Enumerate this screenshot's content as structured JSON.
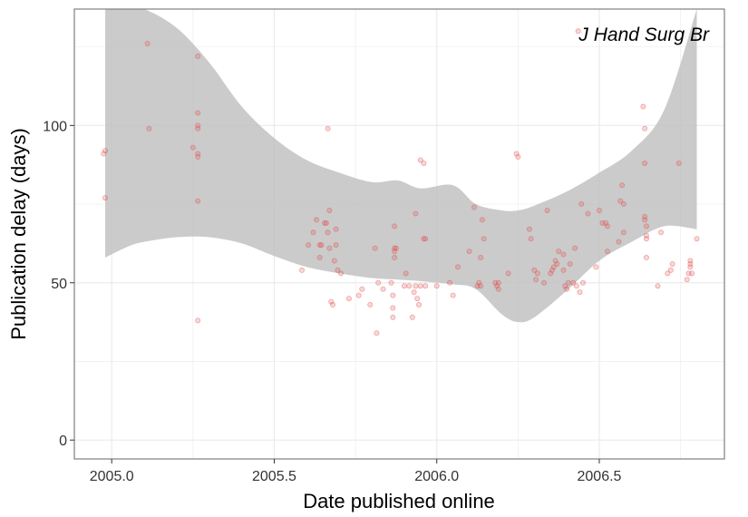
{
  "chart_data": {
    "type": "scatter",
    "title": "",
    "annotation": "J Hand Surg Br",
    "xlabel": "Date published online",
    "ylabel": "Publication delay (days)",
    "xlim": [
      2004.885,
      2006.885
    ],
    "ylim": [
      -6,
      137
    ],
    "x_ticks": [
      2005.0,
      2005.5,
      2006.0,
      2006.5
    ],
    "x_tick_labels": [
      "2005.0",
      "2005.5",
      "2006.0",
      "2006.5"
    ],
    "y_ticks": [
      0,
      50,
      100
    ],
    "y_tick_labels": [
      "0",
      "50",
      "100"
    ],
    "grid": true,
    "legend": "none",
    "colors": {
      "points": "#e34a4a",
      "band": "#bdbdbd",
      "panel_border": "#7f7f7f",
      "grid": "#ebebeb"
    },
    "smooth_band": {
      "x": [
        2004.98,
        2005.05,
        2005.1,
        2005.2,
        2005.3,
        2005.4,
        2005.5,
        2005.6,
        2005.7,
        2005.8,
        2005.88,
        2005.95,
        2006.05,
        2006.12,
        2006.2,
        2006.25,
        2006.3,
        2006.4,
        2006.5,
        2006.6,
        2006.7,
        2006.8
      ],
      "upper": [
        137,
        137,
        137,
        131,
        120,
        106,
        96,
        89,
        85,
        82,
        82.5,
        80,
        81,
        75,
        73,
        73,
        74.5,
        79,
        85,
        92,
        105,
        137
      ],
      "lower": [
        58,
        61.5,
        63,
        64.5,
        64.5,
        62.5,
        58.5,
        55,
        53,
        51.5,
        51,
        50.5,
        49.5,
        48,
        40,
        37.5,
        39,
        47.5,
        57,
        63,
        68,
        67
      ]
    },
    "points": [
      {
        "x": 2004.975,
        "y": 91
      },
      {
        "x": 2004.98,
        "y": 92
      },
      {
        "x": 2004.98,
        "y": 77
      },
      {
        "x": 2005.11,
        "y": 126
      },
      {
        "x": 2005.115,
        "y": 99
      },
      {
        "x": 2005.25,
        "y": 93
      },
      {
        "x": 2005.265,
        "y": 122
      },
      {
        "x": 2005.265,
        "y": 104
      },
      {
        "x": 2005.265,
        "y": 100
      },
      {
        "x": 2005.265,
        "y": 99
      },
      {
        "x": 2005.265,
        "y": 91
      },
      {
        "x": 2005.265,
        "y": 90
      },
      {
        "x": 2005.265,
        "y": 76
      },
      {
        "x": 2005.265,
        "y": 38
      },
      {
        "x": 2005.585,
        "y": 54
      },
      {
        "x": 2005.605,
        "y": 62
      },
      {
        "x": 2005.62,
        "y": 66
      },
      {
        "x": 2005.63,
        "y": 70
      },
      {
        "x": 2005.64,
        "y": 62
      },
      {
        "x": 2005.64,
        "y": 58
      },
      {
        "x": 2005.645,
        "y": 62
      },
      {
        "x": 2005.655,
        "y": 69
      },
      {
        "x": 2005.66,
        "y": 69
      },
      {
        "x": 2005.665,
        "y": 66
      },
      {
        "x": 2005.665,
        "y": 99
      },
      {
        "x": 2005.67,
        "y": 73
      },
      {
        "x": 2005.67,
        "y": 61
      },
      {
        "x": 2005.675,
        "y": 44
      },
      {
        "x": 2005.68,
        "y": 43
      },
      {
        "x": 2005.685,
        "y": 57
      },
      {
        "x": 2005.69,
        "y": 67
      },
      {
        "x": 2005.69,
        "y": 62
      },
      {
        "x": 2005.695,
        "y": 54
      },
      {
        "x": 2005.705,
        "y": 53
      },
      {
        "x": 2005.73,
        "y": 45
      },
      {
        "x": 2005.76,
        "y": 46
      },
      {
        "x": 2005.77,
        "y": 48
      },
      {
        "x": 2005.795,
        "y": 43
      },
      {
        "x": 2005.81,
        "y": 61
      },
      {
        "x": 2005.815,
        "y": 34
      },
      {
        "x": 2005.82,
        "y": 50
      },
      {
        "x": 2005.835,
        "y": 48
      },
      {
        "x": 2005.86,
        "y": 50
      },
      {
        "x": 2005.865,
        "y": 42
      },
      {
        "x": 2005.865,
        "y": 39
      },
      {
        "x": 2005.865,
        "y": 46
      },
      {
        "x": 2005.87,
        "y": 58
      },
      {
        "x": 2005.87,
        "y": 60
      },
      {
        "x": 2005.87,
        "y": 61
      },
      {
        "x": 2005.87,
        "y": 68
      },
      {
        "x": 2005.875,
        "y": 61
      },
      {
        "x": 2005.9,
        "y": 49
      },
      {
        "x": 2005.905,
        "y": 53
      },
      {
        "x": 2005.915,
        "y": 49
      },
      {
        "x": 2005.925,
        "y": 39
      },
      {
        "x": 2005.93,
        "y": 47
      },
      {
        "x": 2005.935,
        "y": 49
      },
      {
        "x": 2005.935,
        "y": 72
      },
      {
        "x": 2005.94,
        "y": 45
      },
      {
        "x": 2005.945,
        "y": 43
      },
      {
        "x": 2005.95,
        "y": 49
      },
      {
        "x": 2005.95,
        "y": 89
      },
      {
        "x": 2005.96,
        "y": 88
      },
      {
        "x": 2005.96,
        "y": 64
      },
      {
        "x": 2005.965,
        "y": 64
      },
      {
        "x": 2005.965,
        "y": 49
      },
      {
        "x": 2006.0,
        "y": 49
      },
      {
        "x": 2006.04,
        "y": 50
      },
      {
        "x": 2006.05,
        "y": 46
      },
      {
        "x": 2006.065,
        "y": 55
      },
      {
        "x": 2006.1,
        "y": 60
      },
      {
        "x": 2006.115,
        "y": 74
      },
      {
        "x": 2006.125,
        "y": 49
      },
      {
        "x": 2006.13,
        "y": 50
      },
      {
        "x": 2006.135,
        "y": 58
      },
      {
        "x": 2006.135,
        "y": 49
      },
      {
        "x": 2006.14,
        "y": 70
      },
      {
        "x": 2006.145,
        "y": 64
      },
      {
        "x": 2006.18,
        "y": 50
      },
      {
        "x": 2006.185,
        "y": 49
      },
      {
        "x": 2006.19,
        "y": 48
      },
      {
        "x": 2006.19,
        "y": 50
      },
      {
        "x": 2006.22,
        "y": 53
      },
      {
        "x": 2006.245,
        "y": 91
      },
      {
        "x": 2006.25,
        "y": 90
      },
      {
        "x": 2006.285,
        "y": 67
      },
      {
        "x": 2006.29,
        "y": 64
      },
      {
        "x": 2006.3,
        "y": 54
      },
      {
        "x": 2006.305,
        "y": 51
      },
      {
        "x": 2006.31,
        "y": 53
      },
      {
        "x": 2006.33,
        "y": 50
      },
      {
        "x": 2006.34,
        "y": 73
      },
      {
        "x": 2006.35,
        "y": 53
      },
      {
        "x": 2006.355,
        "y": 54
      },
      {
        "x": 2006.36,
        "y": 55
      },
      {
        "x": 2006.365,
        "y": 57
      },
      {
        "x": 2006.37,
        "y": 56
      },
      {
        "x": 2006.375,
        "y": 60
      },
      {
        "x": 2006.39,
        "y": 59
      },
      {
        "x": 2006.39,
        "y": 54
      },
      {
        "x": 2006.395,
        "y": 49
      },
      {
        "x": 2006.4,
        "y": 48
      },
      {
        "x": 2006.405,
        "y": 50
      },
      {
        "x": 2006.41,
        "y": 56
      },
      {
        "x": 2006.42,
        "y": 50
      },
      {
        "x": 2006.425,
        "y": 61
      },
      {
        "x": 2006.43,
        "y": 49
      },
      {
        "x": 2006.435,
        "y": 130
      },
      {
        "x": 2006.44,
        "y": 47
      },
      {
        "x": 2006.445,
        "y": 75
      },
      {
        "x": 2006.45,
        "y": 50
      },
      {
        "x": 2006.465,
        "y": 72
      },
      {
        "x": 2006.49,
        "y": 55
      },
      {
        "x": 2006.5,
        "y": 73
      },
      {
        "x": 2006.51,
        "y": 69
      },
      {
        "x": 2006.52,
        "y": 69
      },
      {
        "x": 2006.525,
        "y": 68
      },
      {
        "x": 2006.525,
        "y": 60
      },
      {
        "x": 2006.56,
        "y": 63
      },
      {
        "x": 2006.565,
        "y": 76
      },
      {
        "x": 2006.57,
        "y": 81
      },
      {
        "x": 2006.575,
        "y": 75
      },
      {
        "x": 2006.575,
        "y": 66
      },
      {
        "x": 2006.635,
        "y": 106
      },
      {
        "x": 2006.64,
        "y": 99
      },
      {
        "x": 2006.64,
        "y": 88
      },
      {
        "x": 2006.64,
        "y": 71
      },
      {
        "x": 2006.64,
        "y": 70
      },
      {
        "x": 2006.645,
        "y": 68
      },
      {
        "x": 2006.645,
        "y": 65
      },
      {
        "x": 2006.645,
        "y": 64
      },
      {
        "x": 2006.645,
        "y": 58
      },
      {
        "x": 2006.68,
        "y": 49
      },
      {
        "x": 2006.69,
        "y": 66
      },
      {
        "x": 2006.71,
        "y": 53
      },
      {
        "x": 2006.72,
        "y": 54
      },
      {
        "x": 2006.725,
        "y": 56
      },
      {
        "x": 2006.745,
        "y": 88
      },
      {
        "x": 2006.77,
        "y": 51
      },
      {
        "x": 2006.775,
        "y": 53
      },
      {
        "x": 2006.78,
        "y": 57
      },
      {
        "x": 2006.78,
        "y": 56
      },
      {
        "x": 2006.78,
        "y": 55
      },
      {
        "x": 2006.785,
        "y": 53
      },
      {
        "x": 2006.8,
        "y": 64
      }
    ]
  }
}
